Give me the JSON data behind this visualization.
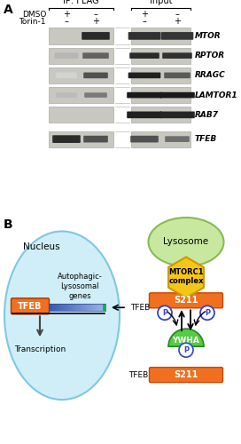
{
  "panel_A_label": "A",
  "panel_B_label": "B",
  "ip_flag_label": "IP: FLAG",
  "input_label": "Input",
  "dmso_label": "DMSO",
  "torin_label": "Torin-1",
  "antibodies": [
    "MTOR",
    "RPTOR",
    "RRAGC",
    "LAMTOR1",
    "RAB7",
    "TFEB"
  ],
  "background_color": "#f5f5f0",
  "gel_bg": "#c8c8c0",
  "nucleus_color": "#d0eef8",
  "nucleus_edge": "#7ec8e3",
  "lysosome_color": "#c8e8a0",
  "lysosome_edge": "#88bb55",
  "mtorc1_color": "#f5c518",
  "mtorc1_edge": "#cc9900",
  "s211_color": "#f07020",
  "ywha_color": "#55cc44",
  "ywha_edge": "#228822",
  "tfeb_box_color": "#f07020",
  "p_circle_color": "#ffffff",
  "p_circle_edge": "#3344cc",
  "white": "#ffffff"
}
